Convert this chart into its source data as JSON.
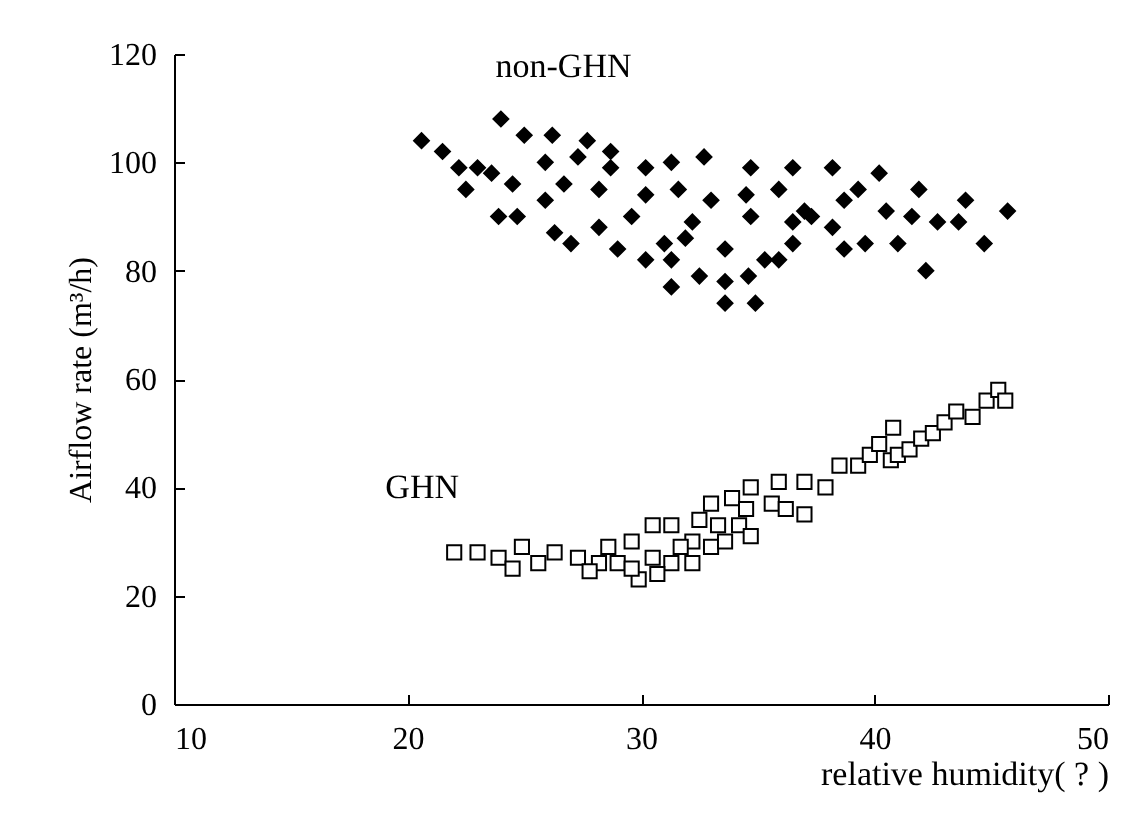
{
  "chart_data": {
    "type": "scatter",
    "xlabel": "relative humidity( ? )",
    "ylabel": "Airflow rate (m³/h)",
    "xlim": [
      10,
      50
    ],
    "xticks": [
      10,
      20,
      30,
      40,
      50
    ],
    "ylim": [
      0,
      120
    ],
    "yticks": [
      0,
      20,
      40,
      60,
      80,
      100,
      120
    ],
    "grid": false,
    "legend": false,
    "series": [
      {
        "name": "non-GHN",
        "color": "#000000",
        "marker": "diamond",
        "x": [
          20.6,
          21.5,
          24.0,
          25.0,
          26.2,
          27.7,
          22.2,
          23.0,
          22.5,
          24.5,
          24.7,
          26.3,
          27.0,
          28.2,
          29.0,
          30.2,
          31.3,
          31.9,
          33.6,
          31.3,
          32.5,
          33.6,
          34.6,
          33.6,
          34.9,
          35.3,
          36.5,
          37.3,
          38.7,
          39.6,
          40.5,
          40.2,
          41.9,
          41.6,
          42.7,
          43.9,
          43.6,
          44.7,
          45.7,
          42.2,
          41.0,
          38.2,
          36.5,
          34.7,
          32.7,
          31.3,
          30.2,
          28.7,
          27.3,
          25.9,
          23.6,
          23.9,
          25.9,
          28.2,
          30.2,
          31.6,
          33.0,
          34.5,
          35.9,
          37.0,
          38.7,
          39.3,
          29.6,
          32.2,
          34.7,
          36.5,
          38.2,
          28.7,
          26.7,
          31.0,
          35.9
        ],
        "values": [
          104,
          102,
          108,
          105,
          105,
          104,
          99,
          99,
          95,
          96,
          90,
          87,
          85,
          88,
          84,
          82,
          82,
          86,
          84,
          77,
          79,
          78,
          79,
          74,
          74,
          82,
          85,
          90,
          84,
          85,
          91,
          98,
          95,
          90,
          89,
          93,
          89,
          85,
          91,
          80,
          85,
          99,
          99,
          99,
          101,
          100,
          99,
          102,
          101,
          100,
          98,
          90,
          93,
          95,
          94,
          95,
          93,
          94,
          95,
          91,
          93,
          95,
          90,
          89,
          90,
          89,
          88,
          99,
          96,
          85,
          82
        ]
      },
      {
        "name": "GHN",
        "color": "#000000",
        "marker": "square",
        "x": [
          22.0,
          23.0,
          23.9,
          24.9,
          25.6,
          26.3,
          27.3,
          28.2,
          29.0,
          29.9,
          29.6,
          30.5,
          31.3,
          32.2,
          29.6,
          30.5,
          31.3,
          32.2,
          33.0,
          33.6,
          32.5,
          33.3,
          34.2,
          34.7,
          33.0,
          33.9,
          34.7,
          35.6,
          36.2,
          37.0,
          35.9,
          37.0,
          37.9,
          38.5,
          39.3,
          40.7,
          27.8,
          24.5,
          30.7,
          28.6,
          31.7,
          34.5,
          39.8,
          40.2,
          40.8,
          41.0,
          41.5,
          42.0,
          42.5,
          43.0,
          43.5,
          44.2,
          44.8,
          45.3,
          45.6
        ],
        "values": [
          28,
          28,
          27,
          29,
          26,
          28,
          27,
          26,
          26,
          23,
          25,
          27,
          26,
          26,
          30,
          33,
          33,
          30,
          29,
          30,
          34,
          33,
          33,
          31,
          37,
          38,
          40,
          37,
          36,
          35,
          41,
          41,
          40,
          44,
          44,
          45,
          24.5,
          25,
          24,
          29,
          29,
          36,
          46,
          48,
          51,
          46,
          47,
          49,
          50,
          52,
          54,
          53,
          56,
          58,
          56
        ]
      }
    ]
  }
}
